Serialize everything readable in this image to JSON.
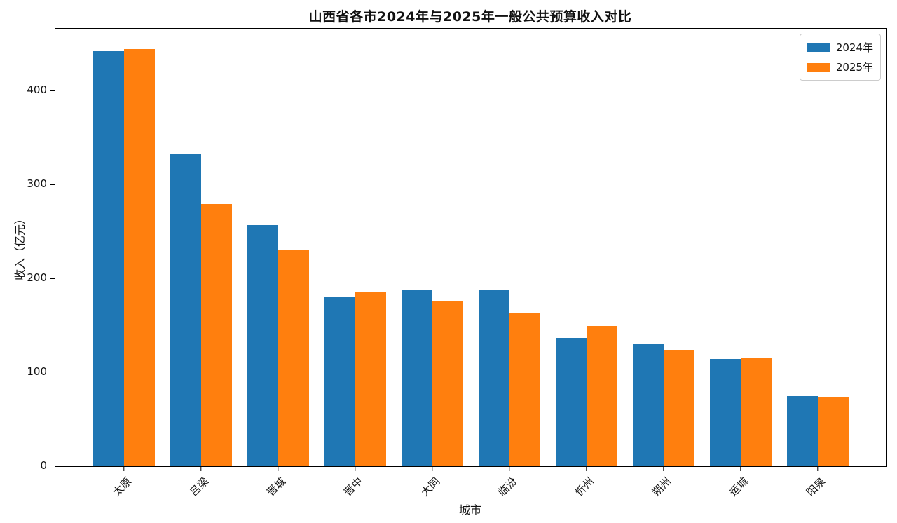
{
  "chart_data": {
    "type": "bar",
    "title": "山西省各市2024年与2025年一般公共预算收入对比",
    "categories": [
      "太原",
      "吕梁",
      "晋城",
      "晋中",
      "大同",
      "临汾",
      "忻州",
      "朔州",
      "运城",
      "阳泉"
    ],
    "series": [
      {
        "name": "2024年",
        "color": "#1f77b4",
        "values": [
          442,
          333,
          257,
          180,
          188,
          188,
          137,
          131,
          114,
          75
        ]
      },
      {
        "name": "2025年",
        "color": "#ff7f0e",
        "values": [
          444,
          279,
          231,
          185,
          176,
          163,
          149,
          124,
          116,
          74
        ]
      }
    ],
    "xlabel": "城市",
    "ylabel": "收入（亿元）",
    "ylim": [
      0,
      466
    ],
    "xlim": [
      -0.89,
      9.89
    ],
    "yticks": [
      0,
      100,
      200,
      300,
      400
    ],
    "bar_width": 0.4,
    "grid": true,
    "grid_style": "dashed",
    "legend_position": "upper right"
  }
}
